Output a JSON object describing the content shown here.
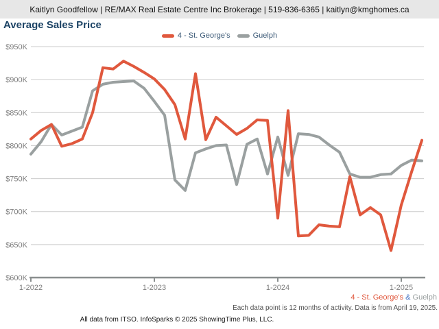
{
  "topbar": {
    "contact": "Kaitlyn Goodfellow | RE/MAX Real Estate Centre Inc Brokerage | 519-836-6365 | kaitlyn@kmghomes.ca"
  },
  "title": "Average Sales Price",
  "legend": {
    "series1_label": "4 - St. George's",
    "series2_label": "Guelph"
  },
  "footer": {
    "series_label_1": "4 - St. George's",
    "ampersand": "&",
    "series_label_2": "Guelph",
    "note": "Each data point is 12 months of activity. Data is from April 19, 2025.",
    "attribution": "All data from ITSO. InfoSparks © 2025 ShowingTime Plus, LLC."
  },
  "colors": {
    "accent_red": "#e0583d",
    "accent_gray": "#9aa0a0",
    "title_blue": "#1c4365",
    "legend_text_blue": "#3c5a77",
    "ampersand_blue": "#4472c4",
    "axis_text_gray": "#7d7d7d",
    "gridline_gray": "#cbcbcb",
    "axis_line_gray": "#8a8f8f",
    "topbar_bg": "#e7e7e7"
  },
  "chart_data": {
    "type": "line",
    "title": "Average Sales Price",
    "xlabel": "",
    "ylabel": "",
    "legend_position": "top",
    "grid": "horizontal",
    "ylim_k": [
      600,
      950
    ],
    "y_ticks": [
      {
        "label": "$600K",
        "value": 600
      },
      {
        "label": "$650K",
        "value": 650
      },
      {
        "label": "$700K",
        "value": 700
      },
      {
        "label": "$750K",
        "value": 750
      },
      {
        "label": "$800K",
        "value": 800
      },
      {
        "label": "$850K",
        "value": 850
      },
      {
        "label": "$900K",
        "value": 900
      },
      {
        "label": "$950K",
        "value": 950
      }
    ],
    "x": [
      "1-2022",
      "2-2022",
      "3-2022",
      "4-2022",
      "5-2022",
      "6-2022",
      "7-2022",
      "8-2022",
      "9-2022",
      "10-2022",
      "11-2022",
      "12-2022",
      "1-2023",
      "2-2023",
      "3-2023",
      "4-2023",
      "5-2023",
      "6-2023",
      "7-2023",
      "8-2023",
      "9-2023",
      "10-2023",
      "11-2023",
      "12-2023",
      "1-2024",
      "2-2024",
      "3-2024",
      "4-2024",
      "5-2024",
      "6-2024",
      "7-2024",
      "8-2024",
      "9-2024",
      "10-2024",
      "11-2024",
      "12-2024",
      "1-2025",
      "2-2025",
      "3-2025"
    ],
    "x_tick_indices": [
      0,
      12,
      24,
      36
    ],
    "x_tick_labels": [
      "1-2022",
      "1-2023",
      "1-2024",
      "1-2025"
    ],
    "series": [
      {
        "name": "4 - St. George's",
        "slug": "st-georges",
        "color": "#e0583d",
        "values_k": [
          810,
          823,
          832,
          799,
          803,
          810,
          850,
          918,
          916,
          928,
          920,
          911,
          901,
          885,
          862,
          810,
          909,
          809,
          843,
          830,
          817,
          826,
          839,
          838,
          690,
          853,
          663,
          664,
          680,
          678,
          677,
          753,
          695,
          706,
          695,
          641,
          710,
          760,
          808
        ]
      },
      {
        "name": "Guelph",
        "slug": "guelph",
        "color": "#9aa0a0",
        "values_k": [
          787,
          806,
          832,
          816,
          822,
          828,
          883,
          893,
          896,
          897,
          898,
          887,
          867,
          846,
          748,
          732,
          789,
          795,
          800,
          801,
          741,
          802,
          810,
          757,
          813,
          755,
          818,
          817,
          813,
          801,
          790,
          757,
          752,
          752,
          756,
          757,
          770,
          778,
          777
        ]
      }
    ]
  }
}
